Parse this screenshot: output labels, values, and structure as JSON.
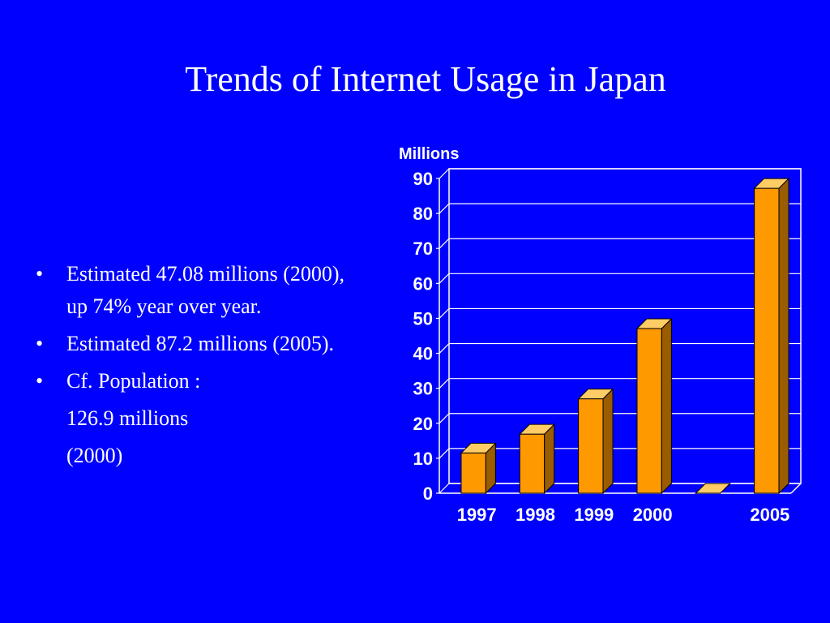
{
  "slide": {
    "title": "Trends of Internet Usage in Japan"
  },
  "bullets": {
    "b1": "Estimated 47.08 millions (2000), up 74% year over year.",
    "b2": "Estimated 87.2 millions (2005).",
    "b3": "Cf. Population :",
    "b3_cont1": "126.9 millions",
    "b3_cont2": "(2000)"
  },
  "chart_data": {
    "type": "bar",
    "title": "",
    "xlabel": "",
    "ylabel": "Millions",
    "categories": [
      "1997",
      "1998",
      "1999",
      "2000",
      "",
      "2005"
    ],
    "values": [
      11.5,
      16.9,
      27.0,
      47.08,
      0,
      87.2
    ],
    "ylim": [
      0,
      90
    ],
    "yticks": [
      0,
      10,
      20,
      30,
      40,
      50,
      60,
      70,
      80,
      90
    ],
    "grid": true,
    "legend": "none",
    "colors": {
      "bar_front": "#ff9900",
      "bar_side": "#995c00",
      "bar_top": "#ffcc66",
      "background": "#0000ff",
      "grid": "#ffffff"
    }
  }
}
